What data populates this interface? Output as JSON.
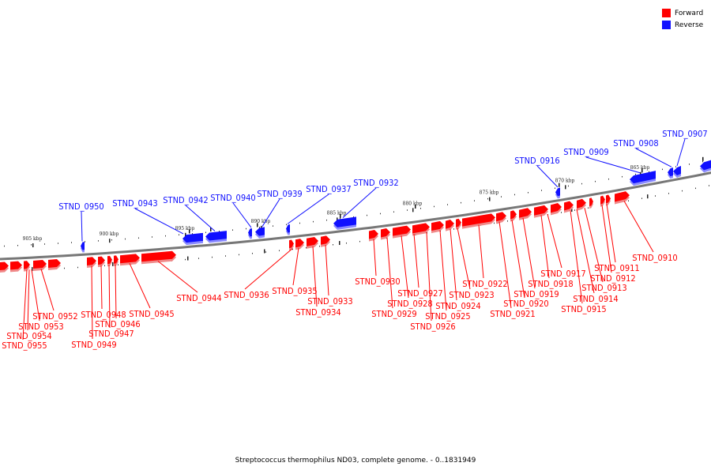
{
  "caption": "Streptococcus thermophilus ND03, complete genome. - 0..1831949",
  "legend": [
    {
      "label": "Forward",
      "color": "#ff0000"
    },
    {
      "label": "Reverse",
      "color": "#1010ff"
    }
  ],
  "colors": {
    "forward": "#ff0000",
    "reverse": "#1010ff",
    "forward_shadow": "#f08a8a",
    "reverse_shadow": "#8a8aff",
    "backbone": "#777777"
  },
  "ticks": [
    "905 kbp",
    "900 kbp",
    "895 kbp",
    "890 kbp",
    "885 kbp",
    "880 kbp",
    "875 kbp",
    "870 kbp",
    "865 kbp"
  ],
  "forward_genes": [
    "STND_0955",
    "STND_0954",
    "STND_0953",
    "STND_0952",
    "STND_0949",
    "STND_0948",
    "STND_0947",
    "STND_0946",
    "STND_0945",
    "STND_0944",
    "STND_0936",
    "STND_0935",
    "STND_0934",
    "STND_0933",
    "STND_0930",
    "STND_0929",
    "STND_0928",
    "STND_0927",
    "STND_0926",
    "STND_0925",
    "STND_0924",
    "STND_0923",
    "STND_0922",
    "STND_0921",
    "STND_0920",
    "STND_0919",
    "STND_0918",
    "STND_0917",
    "STND_0915",
    "STND_0914",
    "STND_0913",
    "STND_0912",
    "STND_0911",
    "STND_0910"
  ],
  "reverse_genes": [
    "STND_0950",
    "STND_0943",
    "STND_0942",
    "STND_0940",
    "STND_0939",
    "STND_0937",
    "STND_0932",
    "STND_0916",
    "STND_0909",
    "STND_0908",
    "STND_0907"
  ]
}
